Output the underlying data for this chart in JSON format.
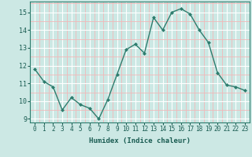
{
  "x": [
    0,
    1,
    2,
    3,
    4,
    5,
    6,
    7,
    8,
    9,
    10,
    11,
    12,
    13,
    14,
    15,
    16,
    17,
    18,
    19,
    20,
    21,
    22,
    23
  ],
  "y": [
    11.8,
    11.1,
    10.8,
    9.5,
    10.2,
    9.8,
    9.6,
    9.0,
    10.1,
    11.5,
    12.9,
    13.2,
    12.7,
    14.7,
    14.0,
    15.0,
    15.2,
    14.9,
    14.0,
    13.3,
    11.6,
    10.9,
    10.8,
    10.6
  ],
  "xlabel": "Humidex (Indice chaleur)",
  "ylim": [
    8.8,
    15.6
  ],
  "xlim": [
    -0.5,
    23.5
  ],
  "yticks": [
    9,
    10,
    11,
    12,
    13,
    14,
    15
  ],
  "xticks": [
    0,
    1,
    2,
    3,
    4,
    5,
    6,
    7,
    8,
    9,
    10,
    11,
    12,
    13,
    14,
    15,
    16,
    17,
    18,
    19,
    20,
    21,
    22,
    23
  ],
  "line_color": "#2e7d6e",
  "marker_color": "#2e7d6e",
  "bg_color": "#cce8e4",
  "grid_color_major": "#ffffff",
  "grid_color_minor": "#f2b8b8"
}
